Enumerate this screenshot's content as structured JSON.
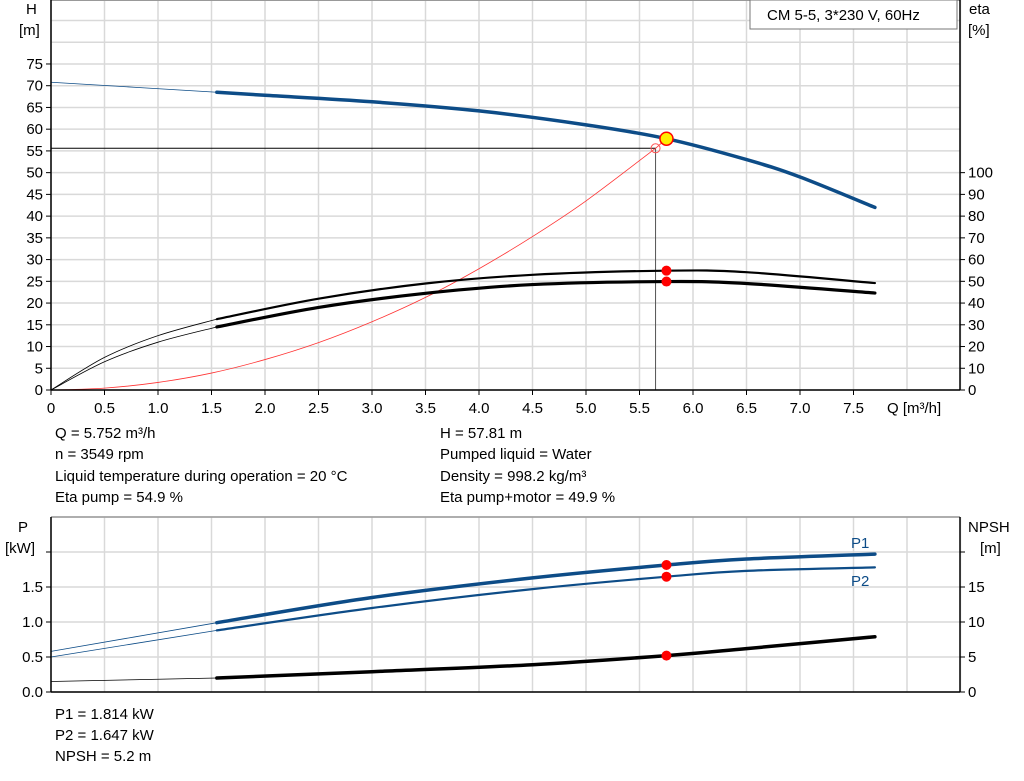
{
  "chart_data": [
    {
      "type": "line",
      "title": "",
      "legend_box": "CM 5-5, 3*230 V, 60Hz",
      "xlabel": "Q [m³/h]",
      "ylabel": "H",
      "ylabel_unit": "[m]",
      "y2label": "eta",
      "y2label_unit": "[%]",
      "xlim": [
        0,
        8.5
      ],
      "ylim": [
        0,
        90
      ],
      "y2lim": [
        0,
        180
      ],
      "grid": true,
      "x_ticks": [
        "0",
        "0.5",
        "1.0",
        "1.5",
        "2.0",
        "2.5",
        "3.0",
        "3.5",
        "4.0",
        "4.5",
        "5.0",
        "5.5",
        "6.0",
        "6.5",
        "7.0",
        "7.5"
      ],
      "y_ticks": [
        "0",
        "5",
        "10",
        "15",
        "20",
        "25",
        "30",
        "35",
        "40",
        "45",
        "50",
        "55",
        "60",
        "65",
        "70",
        "75"
      ],
      "y2_ticks": [
        "0",
        "10",
        "20",
        "30",
        "40",
        "50",
        "60",
        "70",
        "80",
        "90",
        "100"
      ],
      "series": [
        {
          "key": "H",
          "axis": "left",
          "color": "#0d4c87",
          "thin_until": 1.55,
          "x": [
            0,
            1.55,
            2,
            3,
            4,
            5,
            5.752,
            6.5,
            7,
            7.7
          ],
          "y": [
            70.8,
            68.5,
            67.8,
            66.3,
            64.2,
            61,
            57.81,
            53,
            49,
            42
          ]
        },
        {
          "key": "eta_pump",
          "axis": "right",
          "color": "#000000",
          "thin_until": 1.55,
          "x": [
            0,
            0.5,
            1,
            1.55,
            2.5,
            3.5,
            4.5,
            5.752,
            6.5,
            7.7
          ],
          "y": [
            0,
            15,
            25,
            32.6,
            42,
            49,
            53,
            54.9,
            54.2,
            49.2
          ]
        },
        {
          "key": "eta_pump_motor",
          "axis": "right",
          "color": "#000000",
          "thin_until": 1.55,
          "x": [
            0,
            0.5,
            1,
            1.55,
            2.5,
            3.5,
            4.5,
            5.752,
            6.5,
            7.7
          ],
          "y": [
            0,
            13,
            22,
            29,
            38,
            44.5,
            48.5,
            49.9,
            49,
            44.6
          ]
        },
        {
          "key": "system_curve",
          "axis": "left",
          "color": "#ff3333",
          "x": [
            0,
            0.5,
            1,
            1.5,
            2,
            2.5,
            3,
            3.5,
            4,
            4.5,
            5,
            5.65
          ],
          "y": [
            0,
            0.44,
            1.74,
            3.9,
            7,
            10.9,
            15.7,
            21.3,
            27.9,
            35.3,
            43.5,
            55.6
          ]
        }
      ],
      "duty_point": {
        "Q": 5.752,
        "H": 57.81,
        "eta_pump": 54.9,
        "eta_pump_motor": 49.9
      },
      "requested_point": {
        "Q": 5.65,
        "H": 55.6
      },
      "info_left": [
        "Q = 5.752 m³/h",
        "n = 3549 rpm",
        "Liquid temperature during operation = 20 °C",
        "Eta pump = 54.9 %"
      ],
      "info_right": [
        "H = 57.81 m",
        "Pumped liquid = Water",
        "Density = 998.2 kg/m³",
        "Eta pump+motor = 49.9 %"
      ]
    },
    {
      "type": "line",
      "title": "",
      "ylabel": "P",
      "ylabel_unit": "[kW]",
      "y2label": "NPSH",
      "y2label_unit": "[m]",
      "xlim": [
        0,
        8.5
      ],
      "ylim": [
        0,
        2.5
      ],
      "y2lim": [
        0,
        25
      ],
      "grid": true,
      "y_ticks": [
        "0.0",
        "0.5",
        "1.0",
        "1.5",
        ""
      ],
      "y2_ticks": [
        "0",
        "5",
        "10",
        "15",
        ""
      ],
      "series": [
        {
          "name": "P1",
          "axis": "left",
          "color": "#0d4c87",
          "thin_until": 1.55,
          "x": [
            0,
            1.55,
            3,
            4.5,
            5.752,
            6.5,
            7.7
          ],
          "y": [
            0.58,
            0.99,
            1.35,
            1.63,
            1.814,
            1.9,
            1.97
          ]
        },
        {
          "name": "P2",
          "axis": "left",
          "color": "#0d4c87",
          "thin_until": 1.55,
          "x": [
            0,
            1.55,
            3,
            4.5,
            5.752,
            6.5,
            7.7
          ],
          "y": [
            0.5,
            0.88,
            1.2,
            1.47,
            1.647,
            1.73,
            1.78
          ]
        },
        {
          "key": "NPSH",
          "axis": "right",
          "color": "#000000",
          "thin_until": 1.55,
          "x": [
            0,
            1.55,
            3,
            4.5,
            5.752,
            6.5,
            7.7
          ],
          "y": [
            1.5,
            2.0,
            2.9,
            3.9,
            5.2,
            6.2,
            7.9
          ]
        }
      ],
      "duty_point": {
        "P1": 1.814,
        "P2": 1.647,
        "NPSH": 5.2
      },
      "info": [
        "P1 = 1.814 kW",
        "P2 = 1.647 kW",
        "NPSH = 5.2 m"
      ]
    }
  ]
}
